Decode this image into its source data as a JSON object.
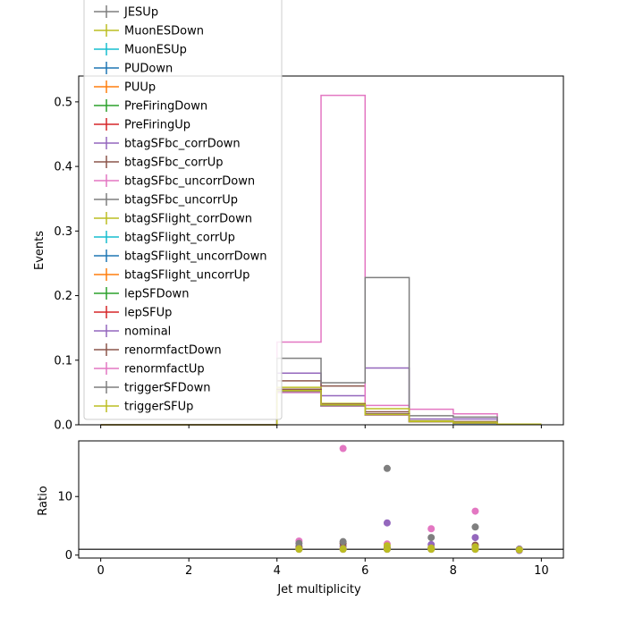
{
  "chart_data": [
    {
      "type": "step",
      "ylabel": "Events",
      "ylim": [
        0,
        0.54
      ],
      "xlim": [
        -0.5,
        10.5
      ],
      "yticks": [
        0.0,
        0.1,
        0.2,
        0.3,
        0.4,
        0.5
      ],
      "ytick_labels": [
        "0.0",
        "0.1",
        "0.2",
        "0.3",
        "0.4",
        "0.5"
      ],
      "bin_edges": [
        0,
        1,
        2,
        3,
        4,
        5,
        6,
        7,
        8,
        9,
        10
      ],
      "legend": {
        "placement": "upper-left",
        "entries": [
          "JESUp",
          "MuonESDown",
          "MuonESUp",
          "PUDown",
          "PUUp",
          "PreFiringDown",
          "PreFiringUp",
          "btagSFbc_corrDown",
          "btagSFbc_corrUp",
          "btagSFbc_uncorrDown",
          "btagSFbc_uncorrUp",
          "btagSFlight_corrDown",
          "btagSFlight_corrUp",
          "btagSFlight_uncorrDown",
          "btagSFlight_uncorrUp",
          "lepSFDown",
          "lepSFUp",
          "nominal",
          "renormfactDown",
          "renormfactUp",
          "triggerSFDown",
          "triggerSFUp"
        ]
      },
      "series": [
        {
          "name": "JESUp",
          "color": "#7f7f7f",
          "values": [
            0,
            0,
            0,
            0,
            0.052,
            0.03,
            0.016,
            0.005,
            0.003,
            0.001
          ]
        },
        {
          "name": "MuonESDown",
          "color": "#bcbd22",
          "values": [
            0,
            0,
            0,
            0,
            0.053,
            0.031,
            0.016,
            0.005,
            0.003,
            0.001
          ]
        },
        {
          "name": "MuonESUp",
          "color": "#17becf",
          "values": [
            0,
            0,
            0,
            0,
            0.053,
            0.031,
            0.016,
            0.005,
            0.003,
            0.001
          ]
        },
        {
          "name": "PUDown",
          "color": "#1f77b4",
          "values": [
            0,
            0,
            0,
            0,
            0.05,
            0.029,
            0.015,
            0.005,
            0.002,
            0.001
          ]
        },
        {
          "name": "PUUp",
          "color": "#ff7f0e",
          "values": [
            0,
            0,
            0,
            0,
            0.055,
            0.032,
            0.017,
            0.005,
            0.003,
            0.001
          ]
        },
        {
          "name": "PreFiringDown",
          "color": "#2ca02c",
          "values": [
            0,
            0,
            0,
            0,
            0.052,
            0.03,
            0.016,
            0.005,
            0.003,
            0.001
          ]
        },
        {
          "name": "PreFiringUp",
          "color": "#d62728",
          "values": [
            0,
            0,
            0,
            0,
            0.053,
            0.031,
            0.016,
            0.005,
            0.003,
            0.001
          ]
        },
        {
          "name": "btagSFbc_corrDown",
          "color": "#9467bd",
          "values": [
            0,
            0,
            0,
            0,
            0.08,
            0.045,
            0.088,
            0.009,
            0.009,
            0.001
          ]
        },
        {
          "name": "btagSFbc_corrUp",
          "color": "#8c564b",
          "values": [
            0,
            0,
            0,
            0,
            0.068,
            0.06,
            0.02,
            0.006,
            0.005,
            0.001
          ]
        },
        {
          "name": "btagSFbc_uncorrDown",
          "color": "#e377c2",
          "values": [
            0,
            0,
            0,
            0,
            0.128,
            0.51,
            0.03,
            0.024,
            0.017,
            0.001
          ]
        },
        {
          "name": "btagSFbc_uncorrUp",
          "color": "#7f7f7f",
          "values": [
            0,
            0,
            0,
            0,
            0.103,
            0.065,
            0.228,
            0.014,
            0.012,
            0.001
          ]
        },
        {
          "name": "btagSFlight_corrDown",
          "color": "#bcbd22",
          "values": [
            0,
            0,
            0,
            0,
            0.058,
            0.033,
            0.025,
            0.006,
            0.004,
            0.001
          ]
        },
        {
          "name": "btagSFlight_corrUp",
          "color": "#17becf",
          "values": [
            0,
            0,
            0,
            0,
            0.052,
            0.03,
            0.016,
            0.005,
            0.003,
            0.001
          ]
        },
        {
          "name": "btagSFlight_uncorrDown",
          "color": "#1f77b4",
          "values": [
            0,
            0,
            0,
            0,
            0.051,
            0.03,
            0.016,
            0.005,
            0.003,
            0.001
          ]
        },
        {
          "name": "btagSFlight_uncorrUp",
          "color": "#ff7f0e",
          "values": [
            0,
            0,
            0,
            0,
            0.054,
            0.031,
            0.017,
            0.005,
            0.003,
            0.001
          ]
        },
        {
          "name": "lepSFDown",
          "color": "#2ca02c",
          "values": [
            0,
            0,
            0,
            0,
            0.051,
            0.029,
            0.015,
            0.005,
            0.003,
            0.001
          ]
        },
        {
          "name": "lepSFUp",
          "color": "#d62728",
          "values": [
            0,
            0,
            0,
            0,
            0.054,
            0.031,
            0.017,
            0.005,
            0.003,
            0.001
          ]
        },
        {
          "name": "nominal",
          "color": "#9467bd",
          "values": [
            0,
            0,
            0,
            0,
            0.053,
            0.03,
            0.016,
            0.005,
            0.003,
            0.001
          ]
        },
        {
          "name": "renormfactDown",
          "color": "#8c564b",
          "values": [
            0,
            0,
            0,
            0,
            0.055,
            0.032,
            0.017,
            0.005,
            0.003,
            0.001
          ]
        },
        {
          "name": "renormfactUp",
          "color": "#e377c2",
          "values": [
            0,
            0,
            0,
            0,
            0.05,
            0.029,
            0.015,
            0.005,
            0.003,
            0.001
          ]
        },
        {
          "name": "triggerSFDown",
          "color": "#7f7f7f",
          "values": [
            0,
            0,
            0,
            0,
            0.052,
            0.03,
            0.016,
            0.005,
            0.003,
            0.001
          ]
        },
        {
          "name": "triggerSFUp",
          "color": "#bcbd22",
          "values": [
            0,
            0,
            0,
            0,
            0.053,
            0.031,
            0.016,
            0.005,
            0.003,
            0.001
          ]
        }
      ]
    },
    {
      "type": "scatter",
      "ylabel": "Ratio",
      "xlabel": "Jet multiplicity",
      "xlim": [
        -0.5,
        10.5
      ],
      "ylim": [
        -0.5,
        19.5
      ],
      "xticks": [
        0,
        2,
        4,
        6,
        8,
        10
      ],
      "xtick_labels": [
        "0",
        "2",
        "4",
        "6",
        "8",
        "10"
      ],
      "yticks": [
        0,
        10
      ],
      "ytick_labels": [
        "0",
        "10"
      ],
      "reference_line": 1,
      "x": [
        4.5,
        5.5,
        6.5,
        7.5,
        8.5,
        9.5
      ],
      "series": [
        {
          "name": "JESUp",
          "color": "#7f7f7f",
          "values": [
            1.0,
            1.0,
            1.0,
            1.0,
            1.0,
            1.0
          ]
        },
        {
          "name": "btagSFbc_corrDown",
          "color": "#9467bd",
          "values": [
            1.5,
            1.5,
            5.5,
            1.8,
            3.0,
            0.8
          ]
        },
        {
          "name": "btagSFbc_corrUp",
          "color": "#8c564b",
          "values": [
            1.3,
            2.0,
            1.2,
            1.2,
            1.7,
            1.0
          ]
        },
        {
          "name": "btagSFbc_uncorrDown",
          "color": "#e377c2",
          "values": [
            2.4,
            18.2,
            1.9,
            4.5,
            7.5,
            0.9
          ]
        },
        {
          "name": "btagSFbc_uncorrUp",
          "color": "#7f7f7f",
          "values": [
            2.0,
            2.3,
            14.8,
            3.0,
            4.8,
            1.0
          ]
        },
        {
          "name": "btagSFlight_corrDown",
          "color": "#bcbd22",
          "values": [
            1.1,
            1.1,
            1.6,
            1.2,
            1.4,
            1.0
          ]
        },
        {
          "name": "nominal",
          "color": "#9467bd",
          "values": [
            1.0,
            1.0,
            1.0,
            1.0,
            1.0,
            1.0
          ]
        },
        {
          "name": "triggerSFUp",
          "color": "#bcbd22",
          "values": [
            1.0,
            1.0,
            1.0,
            1.0,
            1.0,
            0.9
          ]
        }
      ]
    }
  ]
}
